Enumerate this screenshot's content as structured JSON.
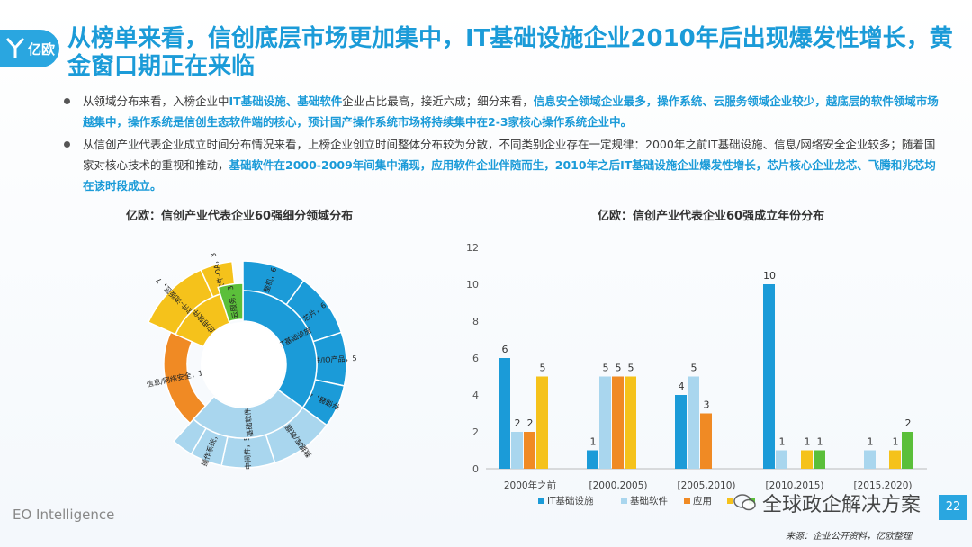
{
  "logo": {
    "text": "亿欧"
  },
  "title": "从榜单来看，信创底层市场更加集中，IT基础设施企业2010年后出现爆发性增长，黄金窗口期正在来临",
  "bullets": [
    [
      {
        "t": "从领域分布来看，入榜企业中",
        "h": false
      },
      {
        "t": "IT基础设施、基础软件",
        "h": true
      },
      {
        "t": "企业占比最高，接近六成；细分来看，",
        "h": false
      },
      {
        "t": "信息安全领域企业最多，操作系统、云服务领域企业较少，越底层的软件领域市场越集中，操作系统是信创生态软件端的核心，预计国产操作系统市场将持续集中在2-3家核心操作系统企业中。",
        "h": true
      }
    ],
    [
      {
        "t": "从信创产业代表企业成立时间分布情况来看，上榜企业创立时间整体分布较为分散，不同类别企业存在一定规律：2000年之前IT基础设施、信息/网络安全企业较多；随着国家对核心技术的重视和推动，",
        "h": false
      },
      {
        "t": "基础软件在2000-2009年间集中涌现，应用软件企业伴随而生，2010年之后IT基础设施企业爆发性增长，芯片核心企业龙芯、飞腾和兆芯均在该时段成立。",
        "h": true
      }
    ]
  ],
  "footer": {
    "brand": "EO Intelligence",
    "watermark": "全球政企解决方案",
    "page": "22",
    "source": "来源：企业公开资料，亿欧整理"
  },
  "chart_data": [
    {
      "type": "sunburst",
      "title": "亿欧：信创产业代表企业60强细分领域分布",
      "inner": [
        {
          "name": "IT基础设施",
          "value": 21,
          "color": "#1b9bd8"
        },
        {
          "name": "基础软件",
          "value": 16,
          "color": "#a9d6ee"
        },
        {
          "name": "",
          "value": 12,
          "color": "#f08a24"
        },
        {
          "name": "应用软件",
          "value": 8,
          "color": "#f5c21b"
        },
        {
          "name": "云服务，3",
          "value": 3,
          "color": "#5bbf3a"
        }
      ],
      "outer": [
        {
          "name": "整机，6",
          "value": 6,
          "color": "#1b9bd8"
        },
        {
          "name": "芯片，6",
          "value": 6,
          "color": "#1b9bd8"
        },
        {
          "name": "固件/IO产品，5",
          "value": 5,
          "color": "#1b9bd8"
        },
        {
          "name": "存储器，4",
          "value": 4,
          "color": "#1b9bd8"
        },
        {
          "name": "数据库/数据，6",
          "value": 6,
          "color": "#a9d6ee"
        },
        {
          "name": "中间件，5",
          "value": 5,
          "color": "#a9d6ee"
        },
        {
          "name": "操作系统，3",
          "value": 3,
          "color": "#a9d6ee"
        },
        {
          "name": "",
          "value": 2,
          "color": "#a9d6ee"
        },
        {
          "name": "信息/网络安全，12",
          "value": 12,
          "color": "#f08a24"
        },
        {
          "name": "办公软件-流版签，7",
          "value": 7,
          "color": "#f5c21b"
        },
        {
          "name": "办公软件-OA，3",
          "value": 3,
          "color": "#f5c21b"
        }
      ]
    },
    {
      "type": "bar",
      "title": "亿欧：信创产业代表企业60强成立年份分布",
      "categories": [
        "2000年之前",
        "[2000,2005)",
        "[2005,2010)",
        "[2010,2015)",
        "[2015,2020)"
      ],
      "ylim": [
        0,
        12
      ],
      "yticks": [
        0,
        2,
        4,
        6,
        8,
        10,
        12
      ],
      "series": [
        {
          "name": "IT基础设施",
          "color": "#1b9bd8",
          "values": [
            6,
            1,
            4,
            10,
            0
          ]
        },
        {
          "name": "基础软件",
          "color": "#a9d6ee",
          "values": [
            2,
            5,
            5,
            1,
            1
          ]
        },
        {
          "name": "应用",
          "color": "#f08a24",
          "values": [
            2,
            5,
            3,
            0,
            0
          ]
        },
        {
          "name": "",
          "color": "#f5c21b",
          "values": [
            5,
            5,
            0,
            1,
            1
          ]
        },
        {
          "name": "",
          "color": "#5bbf3a",
          "values": [
            0,
            0,
            0,
            1,
            2
          ]
        }
      ],
      "labels": [
        [
          "6",
          "1",
          "4",
          "10",
          ""
        ],
        [
          "2",
          "5",
          "5",
          "1",
          "1"
        ],
        [
          "2",
          "5",
          "3",
          "",
          ""
        ],
        [
          "5",
          "5",
          "",
          "1",
          "1"
        ],
        [
          "",
          "",
          "",
          "1",
          "2"
        ]
      ],
      "legend_position": "bottom"
    }
  ]
}
